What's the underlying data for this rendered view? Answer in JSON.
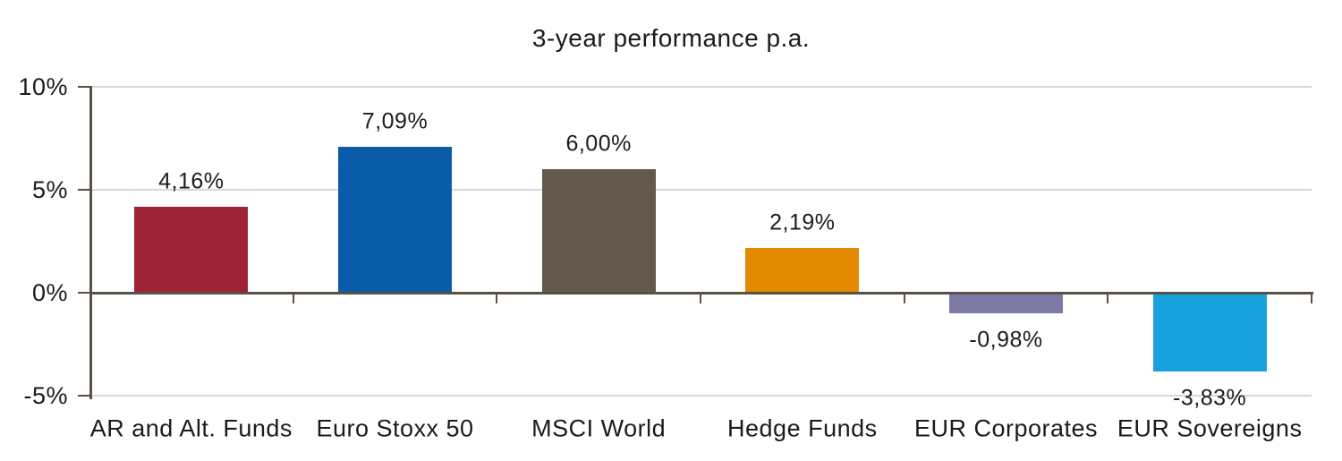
{
  "title": "3-year performance p.a.",
  "chart_data": {
    "type": "bar",
    "title": "3-year performance p.a.",
    "categories": [
      "AR and Alt. Funds",
      "Euro Stoxx 50",
      "MSCI World",
      "Hedge Funds",
      "EUR Corporates",
      "EUR Sovereigns"
    ],
    "values": [
      4.16,
      7.09,
      6.0,
      2.19,
      -0.98,
      -3.83
    ],
    "value_labels": [
      "4,16%",
      "7,09%",
      "6,00%",
      "2,19%",
      "-0,98%",
      "-3,83%"
    ],
    "bar_colors": [
      "#9E2335",
      "#0B5CA8",
      "#63594D",
      "#E28B00",
      "#7E7AA8",
      "#17A2DE"
    ],
    "y_tick_labels": [
      "10%",
      "5%",
      "0%",
      "-5%"
    ],
    "y_tick_values": [
      10,
      5,
      0,
      -5
    ],
    "ylim": [
      -5,
      10
    ],
    "xlabel": "",
    "ylabel": "",
    "grid": "horizontal gridlines at 10%, 5%, -5%; dark zero axis",
    "legend": "none",
    "axis_color": "#595146",
    "gridline_color": "#d9d9d9",
    "text_color": "#1b1b1b",
    "background_color": "#ffffff"
  }
}
